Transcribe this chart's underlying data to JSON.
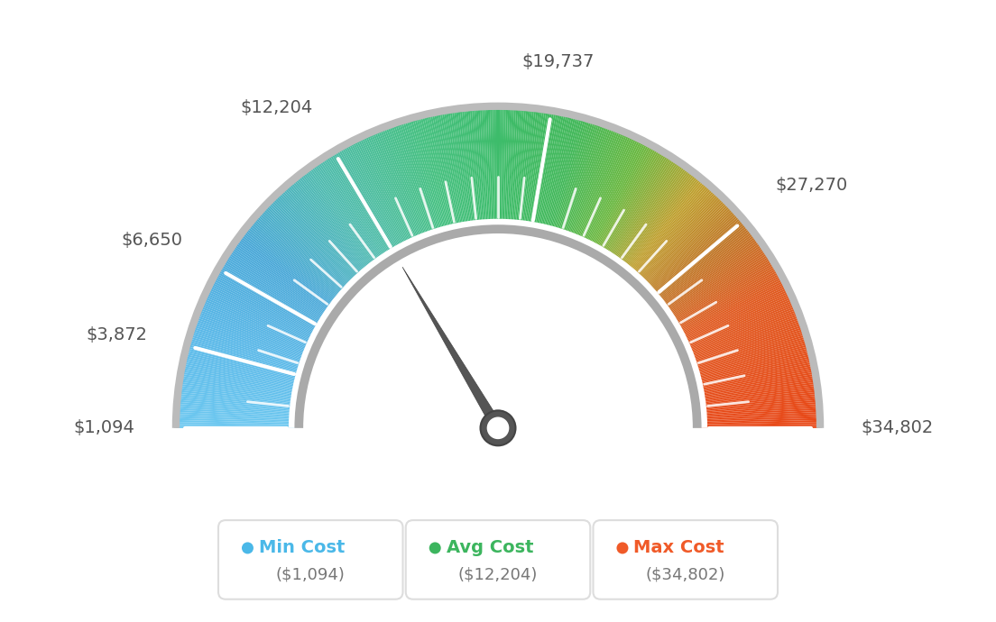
{
  "min_val": 1094,
  "max_val": 34802,
  "avg_val": 12204,
  "tick_labels": [
    "$1,094",
    "$3,872",
    "$6,650",
    "$12,204",
    "$19,737",
    "$27,270",
    "$34,802"
  ],
  "tick_values": [
    1094,
    3872,
    6650,
    12204,
    19737,
    27270,
    34802
  ],
  "legend": [
    {
      "label": "Min Cost",
      "value": "($1,094)",
      "color": "#4ab8e8"
    },
    {
      "label": "Avg Cost",
      "value": "($12,204)",
      "color": "#3cb55e"
    },
    {
      "label": "Max Cost",
      "value": "($34,802)",
      "color": "#f05a28"
    }
  ],
  "background_color": "#ffffff",
  "gauge_color_stops": [
    [
      0.0,
      "#6dc8f0"
    ],
    [
      0.1,
      "#5ab8e8"
    ],
    [
      0.2,
      "#4aa8d8"
    ],
    [
      0.3,
      "#50bbb0"
    ],
    [
      0.42,
      "#45c080"
    ],
    [
      0.5,
      "#3dbc6a"
    ],
    [
      0.58,
      "#42b85a"
    ],
    [
      0.65,
      "#6ab840"
    ],
    [
      0.72,
      "#c0a030"
    ],
    [
      0.78,
      "#c07828"
    ],
    [
      0.85,
      "#e05a20"
    ],
    [
      1.0,
      "#e84818"
    ]
  ],
  "needle_color": "#555555",
  "pivot_outer_color": "#555555",
  "pivot_inner_color": "#ffffff",
  "inner_arc_color": "#cccccc",
  "outer_arc_color": "#cccccc"
}
